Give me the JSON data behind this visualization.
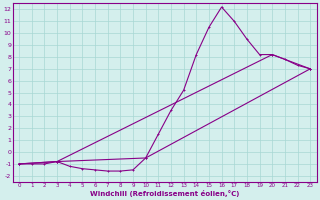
{
  "xlabel": "Windchill (Refroidissement éolien,°C)",
  "xlim": [
    -0.5,
    23.5
  ],
  "ylim": [
    -2.5,
    12.5
  ],
  "xticks": [
    0,
    1,
    2,
    3,
    4,
    5,
    6,
    7,
    8,
    9,
    10,
    11,
    12,
    13,
    14,
    15,
    16,
    17,
    18,
    19,
    20,
    21,
    22,
    23
  ],
  "yticks": [
    -2,
    -1,
    0,
    1,
    2,
    3,
    4,
    5,
    6,
    7,
    8,
    9,
    10,
    11,
    12
  ],
  "bg_color": "#d4efed",
  "grid_color": "#a8d8d4",
  "line_color": "#880088",
  "curve1_x": [
    0,
    1,
    2,
    3,
    4,
    5,
    6,
    7,
    8,
    9,
    10,
    11,
    12,
    13,
    14,
    15,
    16,
    17,
    18,
    19,
    20,
    21,
    22,
    23
  ],
  "curve1_y": [
    -1.0,
    -1.0,
    -1.0,
    -0.8,
    -1.2,
    -1.4,
    -1.5,
    -1.6,
    -1.6,
    -1.5,
    -0.5,
    1.5,
    3.5,
    5.2,
    8.2,
    10.5,
    12.2,
    11.0,
    9.5,
    8.2,
    8.2,
    7.8,
    7.3,
    7.0
  ],
  "curve2_x": [
    0,
    3,
    20,
    23
  ],
  "curve2_y": [
    -1.0,
    -0.8,
    8.2,
    7.0
  ],
  "curve3_x": [
    0,
    3,
    10,
    23
  ],
  "curve3_y": [
    -1.0,
    -0.8,
    -0.5,
    7.0
  ],
  "marker": "+"
}
